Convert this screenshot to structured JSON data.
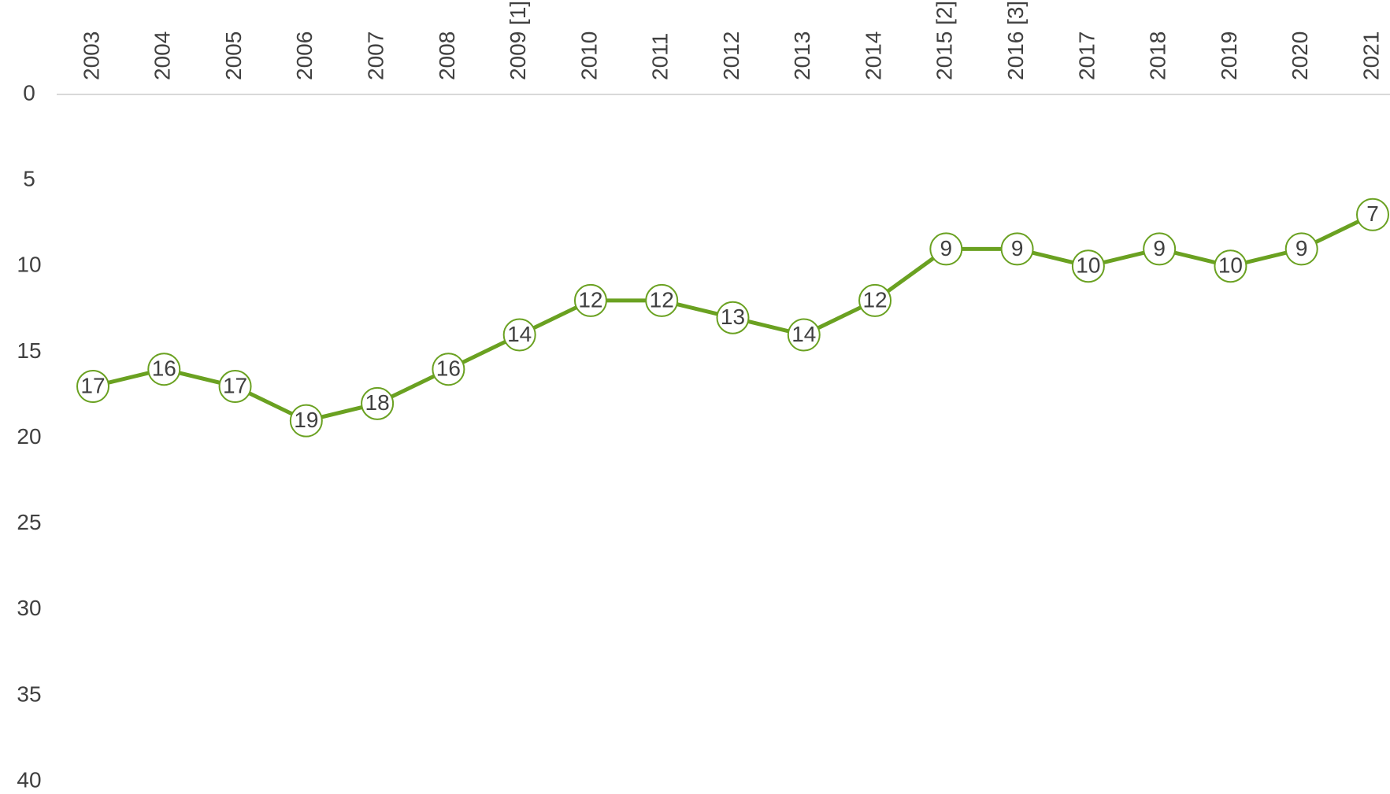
{
  "chart_data": {
    "type": "line",
    "categories": [
      "2003",
      "2004",
      "2005",
      "2006",
      "2007",
      "2008",
      "2009 [1]",
      "2010",
      "2011",
      "2012",
      "2013",
      "2014",
      "2015 [2]",
      "2016 [3]",
      "2017",
      "2018",
      "2019",
      "2020",
      "2021"
    ],
    "series": [
      {
        "color": "#6aa121",
        "values": [
          17,
          16,
          17,
          19,
          18,
          16,
          14,
          12,
          12,
          13,
          14,
          12,
          9,
          9,
          10,
          9,
          10,
          9,
          7
        ]
      }
    ],
    "ylim": [
      0,
      40
    ],
    "yticks": [
      0,
      5,
      10,
      15,
      20,
      25,
      30,
      35,
      40
    ],
    "y_inverted": true,
    "grid": false
  }
}
